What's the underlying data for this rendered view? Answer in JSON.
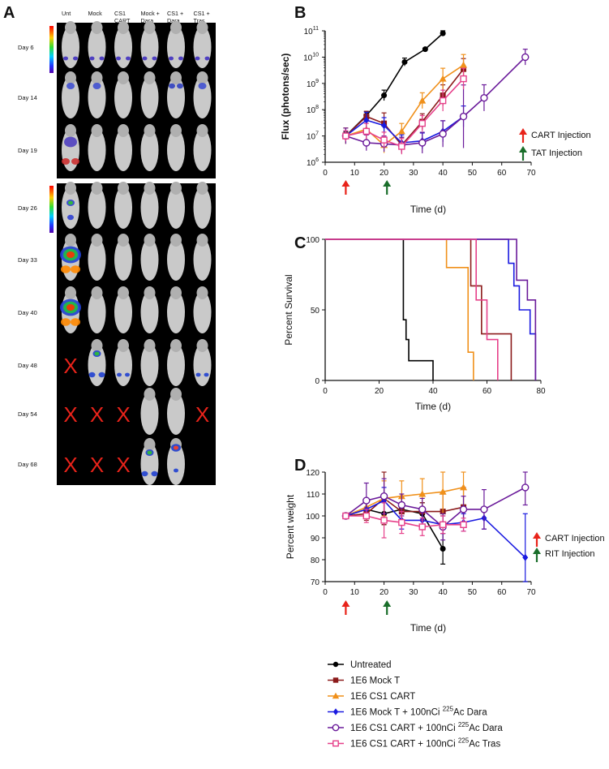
{
  "panel_letters": {
    "A": "A",
    "B": "B",
    "C": "C",
    "D": "D"
  },
  "panel_a": {
    "columns": [
      "Unt",
      "Mock",
      "CS1\nCART",
      "Mock +\nDara",
      "CS1 +\nDara",
      "CS1 +\nTras"
    ],
    "rows_top": [
      "Day 6",
      "Day 14",
      "Day 19"
    ],
    "rows_bottom": [
      "Day 26",
      "Day 33",
      "Day 40",
      "Day 48",
      "Day 54",
      "Day 68"
    ],
    "dead_marker": "X",
    "dead_cells": [
      {
        "row": "Day 48",
        "col": 0
      },
      {
        "row": "Day 54",
        "col": 0
      },
      {
        "row": "Day 54",
        "col": 1
      },
      {
        "row": "Day 54",
        "col": 2
      },
      {
        "row": "Day 54",
        "col": 5
      },
      {
        "row": "Day 68",
        "col": 0
      },
      {
        "row": "Day 68",
        "col": 1
      },
      {
        "row": "Day 68",
        "col": 2
      }
    ],
    "empty_cells": [
      {
        "row": "Day 68",
        "col": 5
      }
    ],
    "colors": {
      "background": "#000000",
      "dead_marker": "#e8231a",
      "mouse": "#c9c9c9"
    }
  },
  "chart_data": [
    {
      "id": "B",
      "type": "line",
      "xlabel": "Time (d)",
      "ylabel": "Flux (photons/sec)",
      "xlim": [
        0,
        70
      ],
      "xticks": [
        0,
        10,
        20,
        30,
        40,
        50,
        60,
        70
      ],
      "ylim_log10": [
        6,
        11
      ],
      "yscale": "log",
      "ytick_labels": [
        {
          "base": "10",
          "exp": "6"
        },
        {
          "base": "10",
          "exp": "7"
        },
        {
          "base": "10",
          "exp": "8"
        },
        {
          "base": "10",
          "exp": "9"
        },
        {
          "base": "10",
          "exp": "10"
        },
        {
          "base": "10",
          "exp": "11"
        }
      ],
      "annotations": [
        {
          "text": "CART Injection",
          "color": "#e8231a",
          "x": 7
        },
        {
          "text": "TAT Injection",
          "color": "#1a6e2a",
          "x": 21
        }
      ],
      "series": [
        {
          "name": "Untreated",
          "color": "#000000",
          "marker": "circle-filled",
          "x": [
            7,
            14,
            20,
            27,
            34,
            40
          ],
          "y": [
            10000000.0,
            60000000.0,
            350000000.0,
            6500000000.0,
            20000000000.0,
            80000000000.0
          ],
          "err": [
            0.15,
            0.15,
            0.2,
            0.15,
            0,
            0.1
          ]
        },
        {
          "name": "1E6 Mock T",
          "color": "#8b1a1a",
          "marker": "square-filled",
          "x": [
            7,
            14,
            20,
            26,
            33,
            40,
            47
          ],
          "y": [
            10000000.0,
            55000000.0,
            30000000.0,
            4500000.0,
            35000000.0,
            350000000.0,
            3500000000.0
          ],
          "err": [
            0.3,
            0.2,
            0.4,
            0.3,
            0.3,
            0.4,
            0.4
          ]
        },
        {
          "name": "1E6 CS1 CART",
          "color": "#f0901a",
          "marker": "triangle-filled",
          "x": [
            7,
            14,
            20,
            26,
            33,
            40,
            47
          ],
          "y": [
            10000000.0,
            18000000.0,
            4500000.0,
            15000000.0,
            220000000.0,
            1500000000.0,
            5000000000.0
          ],
          "err": [
            0.3,
            0.3,
            0.3,
            0.3,
            0.3,
            0.4,
            0.4
          ]
        },
        {
          "name": "1E6 Mock T + 100nCi 225Ac Dara",
          "color": "#1a1ae0",
          "marker": "diamond-filled",
          "x": [
            7,
            14,
            20,
            26,
            33,
            40,
            47
          ],
          "y": [
            10000000.0,
            40000000.0,
            25000000.0,
            5500000.0,
            6500000.0,
            15000000.0,
            55000000.0
          ],
          "err": [
            0.2,
            0.3,
            0.3,
            0.3,
            0.3,
            0.4,
            0.4
          ]
        },
        {
          "name": "1E6 CS1 CART + 100nCi 225Ac Dara",
          "color": "#6a1a9a",
          "marker": "circle-open",
          "x": [
            7,
            14,
            20,
            26,
            33,
            40,
            47,
            54,
            68
          ],
          "y": [
            10000000.0,
            5500000.0,
            5000000.0,
            4500000.0,
            5500000.0,
            12000000.0,
            55000000.0,
            280000000.0,
            10000000000.0
          ],
          "err": [
            0.3,
            0.3,
            0.3,
            0.3,
            0.4,
            0.5,
            1.2,
            0.5,
            0.3
          ]
        },
        {
          "name": "1E6 CS1 CART + 100nCi 225Ac Tras",
          "color": "#e6408a",
          "marker": "square-open",
          "x": [
            7,
            14,
            20,
            26,
            33,
            40,
            47
          ],
          "y": [
            10000000.0,
            15000000.0,
            7000000.0,
            4000000.0,
            30000000.0,
            220000000.0,
            1500000000.0
          ],
          "err": [
            0.2,
            0.3,
            0.3,
            0.3,
            0.3,
            0.4,
            0.4
          ]
        }
      ]
    },
    {
      "id": "C",
      "type": "line",
      "xlabel": "Time (d)",
      "ylabel": "Percent Survival",
      "xlim": [
        0,
        80
      ],
      "xticks": [
        0,
        20,
        40,
        60,
        80
      ],
      "ylim": [
        0,
        100
      ],
      "yticks": [
        0,
        50,
        100
      ],
      "step": true,
      "series": [
        {
          "name": "Untreated",
          "color": "#000000",
          "x": [
            0,
            29,
            30,
            31,
            33,
            40
          ],
          "y": [
            100,
            43,
            29,
            14,
            14,
            0
          ]
        },
        {
          "name": "1E6 Mock T",
          "color": "#8b1a1a",
          "x": [
            0,
            54,
            58,
            69
          ],
          "y": [
            100,
            67,
            33,
            0
          ]
        },
        {
          "name": "1E6 CS1 CART",
          "color": "#f0901a",
          "x": [
            0,
            45,
            53,
            55
          ],
          "y": [
            100,
            80,
            20,
            0
          ]
        },
        {
          "name": "1E6 Mock T + 100nCi 225Ac Dara",
          "color": "#1a1ae0",
          "x": [
            0,
            68,
            70,
            72,
            76,
            78
          ],
          "y": [
            100,
            83,
            67,
            50,
            33,
            0
          ]
        },
        {
          "name": "1E6 CS1 CART + 100nCi 225Ac Dara",
          "color": "#6a1a9a",
          "x": [
            0,
            71,
            75,
            78
          ],
          "y": [
            100,
            71,
            57,
            0
          ]
        },
        {
          "name": "1E6 CS1 CART + 100nCi 225Ac Tras",
          "color": "#e6408a",
          "x": [
            0,
            56,
            60,
            64
          ],
          "y": [
            100,
            57,
            29,
            0
          ]
        }
      ]
    },
    {
      "id": "D",
      "type": "line",
      "xlabel": "Time (d)",
      "ylabel": "Percent weight",
      "xlim": [
        0,
        70
      ],
      "xticks": [
        0,
        10,
        20,
        30,
        40,
        50,
        60,
        70
      ],
      "ylim": [
        70,
        120
      ],
      "yticks": [
        70,
        80,
        90,
        100,
        110,
        120
      ],
      "annotations": [
        {
          "text": "CART Injection",
          "color": "#e8231a",
          "x": 7
        },
        {
          "text": "RIT Injection",
          "color": "#1a6e2a",
          "x": 21
        }
      ],
      "series": [
        {
          "name": "Untreated",
          "color": "#000000",
          "marker": "circle-filled",
          "x": [
            7,
            14,
            20,
            26,
            33,
            40
          ],
          "y": [
            100,
            103,
            101,
            103,
            101,
            85
          ],
          "err": [
            0,
            4,
            5,
            5,
            5,
            7
          ]
        },
        {
          "name": "1E6 Mock T",
          "color": "#8b1a1a",
          "marker": "square-filled",
          "x": [
            7,
            14,
            20,
            26,
            33,
            40,
            47
          ],
          "y": [
            100,
            101,
            108,
            102,
            102,
            102,
            104
          ],
          "err": [
            0,
            3,
            12,
            4,
            4,
            8,
            9
          ]
        },
        {
          "name": "1E6 CS1 CART",
          "color": "#f0901a",
          "marker": "triangle-filled",
          "x": [
            7,
            14,
            20,
            26,
            33,
            40,
            47
          ],
          "y": [
            100,
            104,
            108,
            109,
            110,
            111,
            113
          ],
          "err": [
            0,
            4,
            8,
            7,
            7,
            11,
            10
          ]
        },
        {
          "name": "1E6 Mock T + 100nCi 225Ac Dara",
          "color": "#1a1ae0",
          "marker": "diamond-filled",
          "x": [
            7,
            14,
            20,
            26,
            33,
            40,
            47,
            54,
            68
          ],
          "y": [
            100,
            103,
            107,
            98,
            98,
            96,
            97,
            99,
            81
          ],
          "err": [
            0,
            4,
            6,
            4,
            4,
            4,
            4,
            5,
            20
          ]
        },
        {
          "name": "1E6 CS1 CART + 100nCi 225Ac Dara",
          "color": "#6a1a9a",
          "marker": "circle-open",
          "x": [
            7,
            14,
            20,
            26,
            33,
            40,
            47,
            54,
            68
          ],
          "y": [
            100,
            107,
            109,
            105,
            103,
            95,
            103,
            103,
            113
          ],
          "err": [
            0,
            8,
            8,
            5,
            5,
            6,
            6,
            9,
            8
          ]
        },
        {
          "name": "1E6 CS1 CART + 100nCi 225Ac Tras",
          "color": "#e6408a",
          "marker": "square-open",
          "x": [
            7,
            14,
            20,
            26,
            33,
            40,
            47
          ],
          "y": [
            100,
            100,
            98,
            97,
            95,
            96,
            96
          ],
          "err": [
            0,
            3,
            8,
            5,
            4,
            4,
            3
          ]
        }
      ]
    }
  ],
  "legend": [
    {
      "text": "Untreated",
      "color": "#000000",
      "marker": "circle-filled"
    },
    {
      "text": "1E6 Mock T",
      "color": "#8b1a1a",
      "marker": "square-filled"
    },
    {
      "text": "1E6 CS1 CART",
      "color": "#f0901a",
      "marker": "triangle-filled"
    },
    {
      "text": "1E6 Mock T + 100nCi ",
      "sup": "225",
      "tail": "Ac Dara",
      "color": "#1a1ae0",
      "marker": "diamond-filled"
    },
    {
      "text": "1E6 CS1 CART + 100nCi ",
      "sup": "225",
      "tail": "Ac Dara",
      "color": "#6a1a9a",
      "marker": "circle-open"
    },
    {
      "text": "1E6 CS1 CART + 100nCi ",
      "sup": "225",
      "tail": "Ac Tras",
      "color": "#e6408a",
      "marker": "square-open"
    }
  ]
}
